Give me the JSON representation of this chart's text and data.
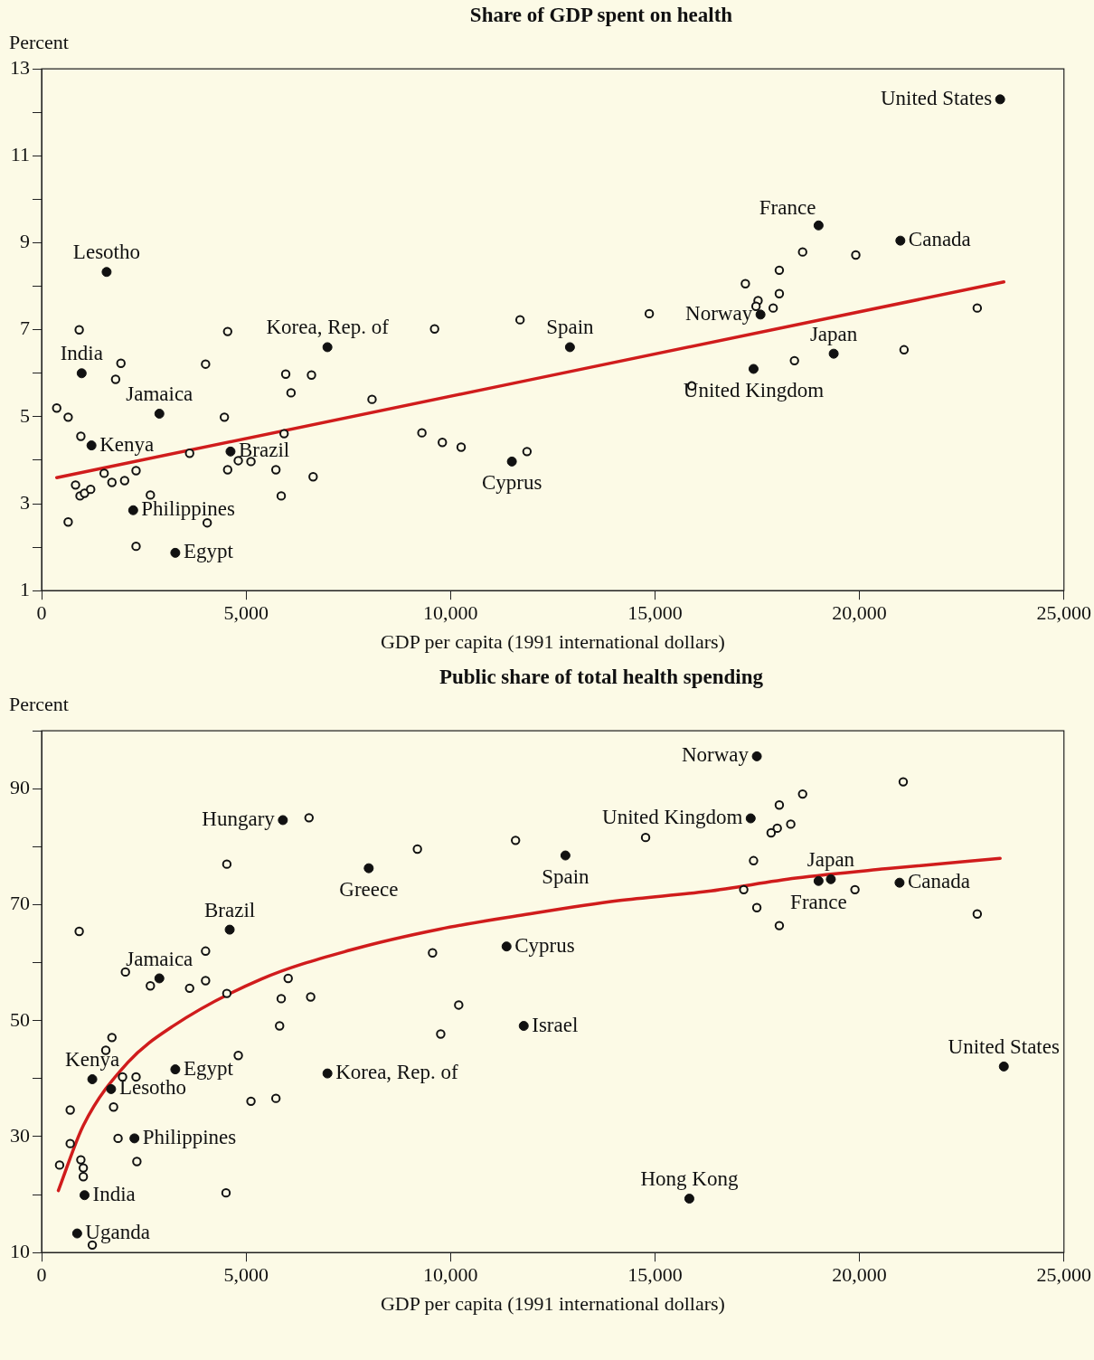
{
  "chart_data": [
    {
      "type": "scatter",
      "title": "Share of GDP spent on health",
      "ylabel": "Percent",
      "xlabel": "GDP per capita (1991 international dollars)",
      "xlim": [
        0,
        25000
      ],
      "ylim": [
        1,
        13
      ],
      "xticks": [
        0,
        {
          "value": 5000,
          "label": "5,000"
        },
        {
          "value": 10000,
          "label": "10,000"
        },
        {
          "value": 15000,
          "label": "15,000"
        },
        {
          "value": 20000,
          "label": "20,000"
        },
        {
          "value": 25000,
          "label": "25,000"
        }
      ],
      "yticks": [
        1,
        {
          "value": 2,
          "label": null
        },
        3,
        {
          "value": 4,
          "label": null
        },
        5,
        {
          "value": 6,
          "label": null
        },
        7,
        {
          "value": 8,
          "label": null
        },
        9,
        {
          "value": 10,
          "label": null
        },
        11,
        {
          "value": 12,
          "label": null
        },
        13
      ],
      "grid": false,
      "legend": false,
      "series": [
        {
          "marker": "circle",
          "color": "#111111",
          "x": [
            23440,
            19000,
            21000,
            1590,
            6990,
            12920,
            17580,
            19370,
            17410,
            980,
            2880,
            1220,
            4620,
            11500,
            2240,
            3270
          ],
          "values": [
            12.3,
            9.4,
            9.05,
            8.33,
            6.6,
            6.6,
            7.35,
            6.45,
            6.1,
            6.0,
            5.07,
            4.34,
            4.2,
            3.97,
            2.85,
            1.87
          ]
        },
        {
          "marker": "circle",
          "color": "#111111",
          "x": [
            920,
            1940,
            1810,
            370,
            650,
            960,
            4010,
            4550,
            4470,
            5970,
            6600,
            6100,
            8080,
            9610,
            11700,
            9300,
            9800,
            10260,
            11870,
            14860,
            15900,
            17210,
            17520,
            17470,
            17890,
            18040,
            18040,
            18610,
            18410,
            19910,
            21090,
            22880,
            1530,
            2310,
            1720,
            2030,
            830,
            940,
            1050,
            1200,
            650,
            2660,
            3620,
            4550,
            4810,
            5120,
            5730,
            5930,
            5860,
            6640,
            4050,
            2310
          ],
          "values": [
            7.0,
            6.23,
            5.86,
            5.2,
            4.99,
            4.55,
            6.21,
            6.96,
            4.99,
            5.98,
            5.96,
            5.55,
            5.4,
            7.02,
            7.23,
            4.63,
            4.41,
            4.3,
            4.2,
            7.37,
            5.71,
            8.06,
            7.67,
            7.54,
            7.5,
            8.37,
            7.83,
            8.79,
            6.29,
            8.72,
            6.54,
            7.5,
            3.7,
            3.76,
            3.49,
            3.53,
            3.43,
            3.18,
            3.24,
            3.33,
            2.58,
            3.2,
            4.16,
            3.78,
            3.99,
            3.97,
            3.78,
            4.61,
            3.18,
            3.62,
            2.56,
            2.02
          ]
        },
        {
          "type": "line",
          "marker": "none",
          "color": "#d01c1c",
          "x": [
            370,
            23530
          ],
          "values": [
            3.6,
            8.1
          ]
        }
      ],
      "annotations": [
        {
          "text": "United States",
          "x": 23440,
          "y": 12.3
        },
        {
          "text": "France",
          "x": 19000,
          "y": 9.4
        },
        {
          "text": "Canada",
          "x": 21000,
          "y": 9.05
        },
        {
          "text": "Lesotho",
          "x": 1590,
          "y": 8.33
        },
        {
          "text": "Korea, Rep. of",
          "x": 6990,
          "y": 6.6
        },
        {
          "text": "Spain",
          "x": 12920,
          "y": 6.6
        },
        {
          "text": "Norway",
          "x": 17580,
          "y": 7.35
        },
        {
          "text": "Japan",
          "x": 19370,
          "y": 6.45
        },
        {
          "text": "United Kingdom",
          "x": 17410,
          "y": 6.1
        },
        {
          "text": "India",
          "x": 980,
          "y": 6.0
        },
        {
          "text": "Jamaica",
          "x": 2880,
          "y": 5.07
        },
        {
          "text": "Kenya",
          "x": 1220,
          "y": 4.34
        },
        {
          "text": "Brazil",
          "x": 4620,
          "y": 4.2
        },
        {
          "text": "Cyprus",
          "x": 11500,
          "y": 3.97
        },
        {
          "text": "Philippines",
          "x": 2240,
          "y": 2.85
        },
        {
          "text": "Egypt",
          "x": 3270,
          "y": 1.87
        }
      ]
    },
    {
      "type": "scatter",
      "title": "Public share of total health spending",
      "ylabel": "Percent",
      "xlabel": "GDP per capita (1991 international dollars)",
      "xlim": [
        0,
        25000
      ],
      "ylim": [
        10,
        100
      ],
      "xticks": [
        0,
        {
          "value": 5000,
          "label": "5,000"
        },
        {
          "value": 10000,
          "label": "10,000"
        },
        {
          "value": 15000,
          "label": "15,000"
        },
        {
          "value": 20000,
          "label": "20,000"
        },
        {
          "value": 25000,
          "label": "25,000"
        }
      ],
      "yticks": [
        10,
        {
          "value": 20,
          "label": null
        },
        30,
        {
          "value": 40,
          "label": null
        },
        50,
        {
          "value": 60,
          "label": null
        },
        70,
        {
          "value": 80,
          "label": null
        },
        90,
        {
          "value": 100,
          "label": null
        }
      ],
      "grid": false,
      "legend": false,
      "series": [
        {
          "marker": "circle",
          "color": "#111111",
          "x": [
            17490,
            17340,
            5900,
            12810,
            8000,
            19300,
            19000,
            20980,
            4600,
            11370,
            2880,
            11790,
            23530,
            3270,
            6990,
            1240,
            1700,
            2270,
            1050,
            15840,
            870
          ],
          "values": [
            95.6,
            84.9,
            84.6,
            78.5,
            76.3,
            74.4,
            74.1,
            73.8,
            65.7,
            62.8,
            57.3,
            49.1,
            42.1,
            41.6,
            40.9,
            39.9,
            38.2,
            29.7,
            19.9,
            19.3,
            13.3
          ]
        },
        {
          "marker": "circle",
          "color": "#111111",
          "x": [
            920,
            6540,
            4530,
            9190,
            11590,
            14770,
            18610,
            21070,
            18040,
            18320,
            17990,
            17840,
            17410,
            17490,
            18040,
            17170,
            19890,
            22880,
            2050,
            2660,
            3620,
            4010,
            4010,
            4530,
            6030,
            5860,
            6580,
            9560,
            5820,
            10200,
            9760,
            1720,
            1570,
            1980,
            2310,
            4810,
            1760,
            700,
            5120,
            5730,
            1870,
            700,
            2330,
            440,
            960,
            1020,
            1020,
            4510,
            1240
          ],
          "values": [
            65.4,
            85.0,
            77.0,
            79.6,
            81.1,
            81.6,
            89.1,
            91.2,
            87.2,
            83.9,
            83.2,
            82.4,
            77.6,
            69.5,
            66.4,
            72.6,
            72.6,
            68.4,
            58.4,
            56.0,
            55.6,
            56.9,
            62.0,
            54.7,
            57.3,
            53.8,
            54.1,
            61.7,
            49.1,
            52.7,
            47.7,
            47.1,
            44.9,
            40.3,
            40.3,
            44.0,
            35.1,
            34.6,
            36.1,
            36.6,
            29.7,
            28.8,
            25.7,
            25.1,
            26.0,
            24.6,
            23.1,
            20.3,
            11.3
          ]
        },
        {
          "type": "line",
          "marker": "none",
          "color": "#d01c1c",
          "x": [
            410,
            1020,
            2110,
            3200,
            5380,
            7560,
            9740,
            11920,
            14100,
            16270,
            18450,
            20630,
            23440
          ],
          "values": [
            20.7,
            31.9,
            42.8,
            49.0,
            57.2,
            62.2,
            65.8,
            68.4,
            70.7,
            72.3,
            74.6,
            76.2,
            78.0
          ]
        }
      ],
      "annotations": [
        {
          "text": "Norway",
          "x": 17490,
          "y": 95.6
        },
        {
          "text": "United Kingdom",
          "x": 17340,
          "y": 84.9
        },
        {
          "text": "Hungary",
          "x": 5900,
          "y": 84.6
        },
        {
          "text": "Spain",
          "x": 12810,
          "y": 78.5
        },
        {
          "text": "Greece",
          "x": 8000,
          "y": 76.3
        },
        {
          "text": "Japan",
          "x": 19300,
          "y": 74.4
        },
        {
          "text": "France",
          "x": 19000,
          "y": 74.1
        },
        {
          "text": "Canada",
          "x": 20980,
          "y": 73.8
        },
        {
          "text": "Brazil",
          "x": 4600,
          "y": 65.7
        },
        {
          "text": "Cyprus",
          "x": 11370,
          "y": 62.8
        },
        {
          "text": "Jamaica",
          "x": 2880,
          "y": 57.3
        },
        {
          "text": "Israel",
          "x": 11790,
          "y": 49.1
        },
        {
          "text": "United States",
          "x": 23530,
          "y": 42.1
        },
        {
          "text": "Egypt",
          "x": 3270,
          "y": 41.6
        },
        {
          "text": "Korea, Rep. of",
          "x": 6990,
          "y": 40.9
        },
        {
          "text": "Kenya",
          "x": 1240,
          "y": 39.9
        },
        {
          "text": "Lesotho",
          "x": 1700,
          "y": 38.2
        },
        {
          "text": "Philippines",
          "x": 2270,
          "y": 29.7
        },
        {
          "text": "India",
          "x": 1050,
          "y": 19.9
        },
        {
          "text": "Hong Kong",
          "x": 15840,
          "y": 19.3
        },
        {
          "text": "Uganda",
          "x": 870,
          "y": 13.3
        }
      ]
    }
  ]
}
